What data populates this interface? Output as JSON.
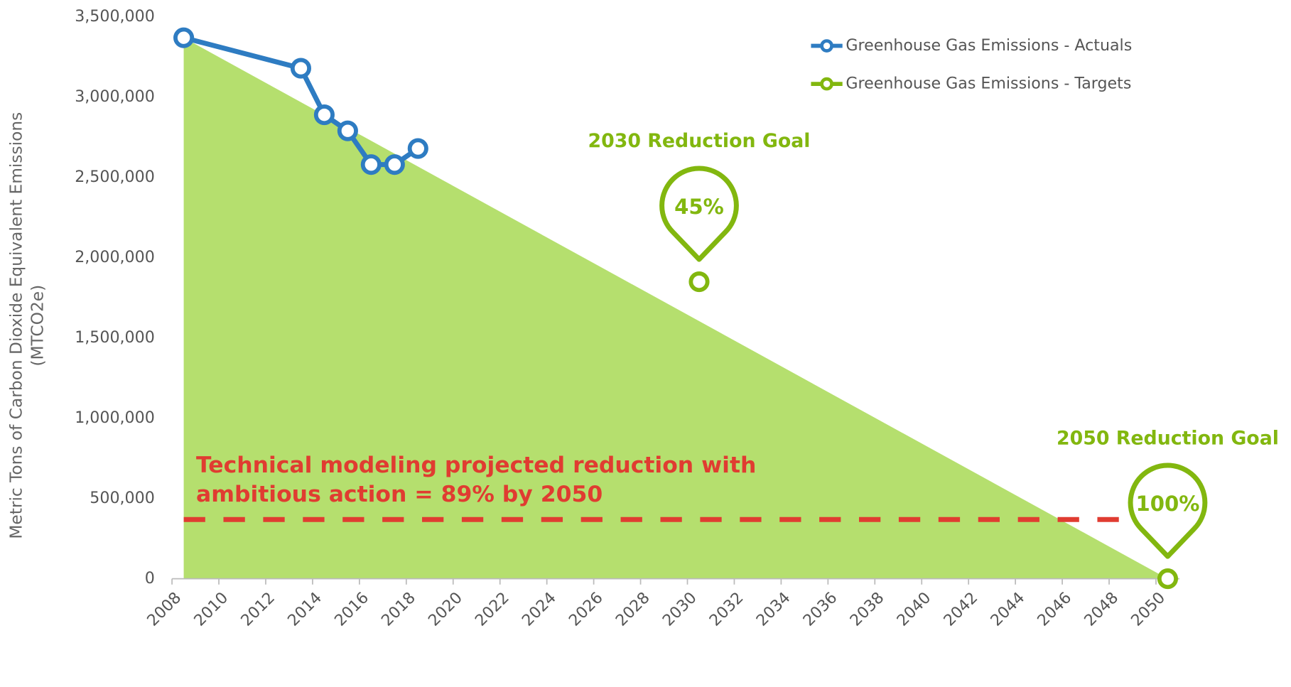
{
  "chart_data": {
    "type": "line",
    "y_label": [
      "Metric Tons of Carbon Dioxide Equivalent Emissions",
      "(MTCO2e)"
    ],
    "xlim": [
      2008,
      2050
    ],
    "xticks": [
      2008,
      2010,
      2012,
      2014,
      2016,
      2018,
      2020,
      2022,
      2024,
      2026,
      2028,
      2030,
      2032,
      2034,
      2036,
      2038,
      2040,
      2042,
      2044,
      2046,
      2048,
      2050
    ],
    "ylim": [
      0,
      3500000
    ],
    "yticks": [
      0,
      {
        "value": 500000,
        "label": "500,000"
      },
      {
        "value": 1000000,
        "label": "1,000,000"
      },
      {
        "value": 1500000,
        "label": "1,500,000"
      },
      {
        "value": 2000000,
        "label": "2,000,000"
      },
      {
        "value": 2500000,
        "label": "2,500,000"
      },
      {
        "value": 3000000,
        "label": "3,000,000"
      },
      {
        "value": 3500000,
        "label": "3,500,000"
      }
    ],
    "legend": "top-right",
    "area": {
      "x": [
        2008,
        2050
      ],
      "values": [
        3370000,
        0
      ],
      "color": "#b5df6e"
    },
    "series": [
      {
        "name": "Greenhouse Gas Emissions - Actuals",
        "color": "#2e7cc2",
        "line": true,
        "x": [
          2008,
          2013,
          2014,
          2015,
          2016,
          2017,
          2018
        ],
        "values": [
          3370000,
          3180000,
          2890000,
          2790000,
          2580000,
          2580000,
          2680000
        ]
      },
      {
        "name": "Greenhouse Gas Emissions - Targets",
        "color": "#82b70f",
        "line": false,
        "x": [
          2030,
          2050
        ],
        "values": [
          1850000,
          0
        ],
        "goals": [
          {
            "title": "2030 Reduction Goal",
            "label": "45%"
          },
          {
            "title": "2050 Reduction Goal",
            "label": "100%"
          }
        ]
      }
    ],
    "reference_line": {
      "value": 369000,
      "x": [
        2008,
        2048
      ],
      "color": "#e03c31",
      "text": [
        "Technical modeling projected reduction with",
        "ambitious action = 89% by 2050"
      ]
    }
  }
}
